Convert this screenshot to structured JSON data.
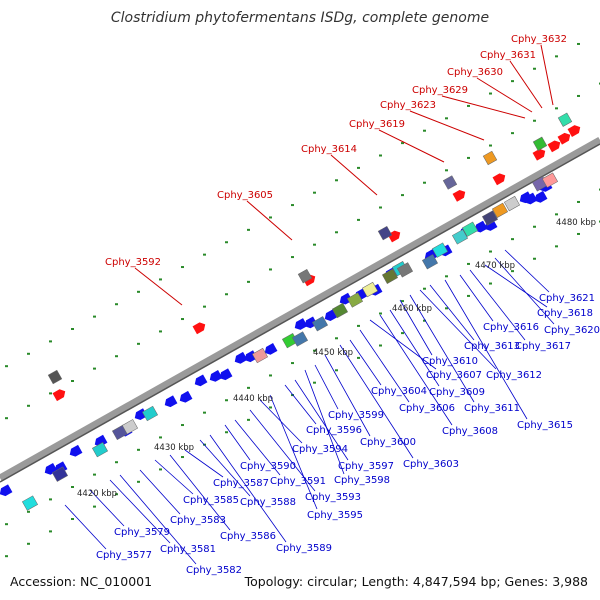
{
  "title": "Clostridium phytofermentans ISDg, complete genome",
  "footer": {
    "accession": "Accession: NC_010001",
    "summary": "Topology: circular; Length: 4,847,594 bp; Genes: 3,988"
  },
  "colors": {
    "backbone": "#9a9a9a",
    "forward_gene": "#ff0000",
    "reverse_gene": "#0000ee",
    "label_top": "#cc0000",
    "label_bottom": "#0000cc",
    "dots": "#2a8a2a"
  },
  "ticks": [
    "4420 kbp",
    "4430 kbp",
    "4440 kbp",
    "4450 kbp",
    "4460 kbp",
    "4470 kbp",
    "4480 kbp"
  ],
  "top_labels": [
    "Cphy_3592",
    "Cphy_3605",
    "Cphy_3614",
    "Cphy_3619",
    "Cphy_3623",
    "Cphy_3629",
    "Cphy_3630",
    "Cphy_3631",
    "Cphy_3632"
  ],
  "bottom_labels": [
    "Cphy_3577",
    "Cphy_3579",
    "Cphy_3581",
    "Cphy_3582",
    "Cphy_3583",
    "Cphy_3585",
    "Cphy_3586",
    "Cphy_3587",
    "Cphy_3588",
    "Cphy_3589",
    "Cphy_3590",
    "Cphy_3591",
    "Cphy_3593",
    "Cphy_3594",
    "Cphy_3595",
    "Cphy_3596",
    "Cphy_3597",
    "Cphy_3598",
    "Cphy_3599",
    "Cphy_3600",
    "Cphy_3603",
    "Cphy_3604",
    "Cphy_3606",
    "Cphy_3607",
    "Cphy_3608",
    "Cphy_3609",
    "Cphy_3610",
    "Cphy_3611",
    "Cphy_3612",
    "Cphy_3613",
    "Cphy_3615",
    "Cphy_3616",
    "Cphy_3617",
    "Cphy_3618",
    "Cphy_3620",
    "Cphy_3621"
  ]
}
